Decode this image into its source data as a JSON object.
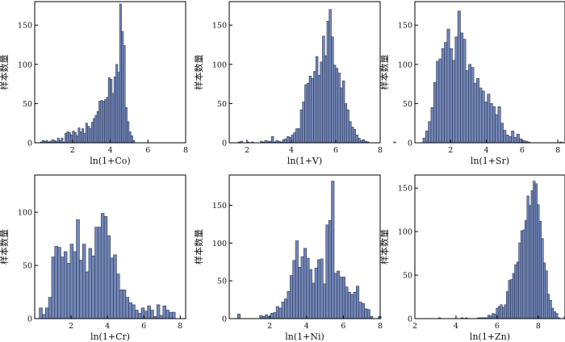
{
  "colors": {
    "bar_fill": "#7387b6",
    "bar_edge": "#2a3558",
    "axis": "#000000"
  },
  "chart_data": [
    {
      "type": "bar",
      "xlabel": "ln(1+Co)",
      "ylabel": "样本数量",
      "xlim": [
        0,
        8
      ],
      "ylim": [
        0,
        180
      ],
      "xticks": [
        2,
        4,
        6,
        8
      ],
      "yticks": [
        0,
        50,
        100,
        150
      ],
      "bin_width": 0.1,
      "x_start": 0.3,
      "values": [
        1,
        3,
        2,
        3,
        1,
        2,
        4,
        3,
        2,
        6,
        3,
        6,
        1,
        12,
        14,
        13,
        10,
        15,
        13,
        9,
        19,
        14,
        18,
        12,
        25,
        21,
        18,
        26,
        31,
        35,
        40,
        53,
        54,
        53,
        55,
        58,
        83,
        81,
        63,
        84,
        100,
        90,
        177,
        142,
        124,
        45,
        27,
        14,
        9,
        3
      ]
    },
    {
      "type": "bar",
      "xlabel": "ln(1+V)",
      "ylabel": "样本数量",
      "xlim": [
        1.2,
        8
      ],
      "ylim": [
        0,
        180
      ],
      "xticks": [
        2,
        4,
        6,
        8
      ],
      "yticks": [
        0,
        50,
        100,
        150
      ],
      "bin_width": 0.1,
      "x_start": 1.6,
      "values": [
        1,
        2,
        0,
        0,
        1,
        0,
        1,
        0,
        0,
        0,
        2,
        1,
        3,
        2,
        2,
        8,
        1,
        3,
        2,
        1,
        4,
        5,
        8,
        7,
        10,
        13,
        18,
        18,
        42,
        52,
        74,
        76,
        85,
        82,
        91,
        110,
        86,
        103,
        136,
        111,
        155,
        170,
        135,
        99,
        95,
        89,
        70,
        79,
        50,
        42,
        27,
        20,
        17,
        10,
        6,
        3,
        4,
        2,
        1,
        0,
        0,
        0,
        0,
        0,
        0,
        0,
        0,
        0,
        0,
        0,
        1,
        0
      ]
    },
    {
      "type": "bar",
      "xlabel": "ln(1+Sr)",
      "ylabel": "样本数量",
      "xlim": [
        0,
        8.4
      ],
      "ylim": [
        0,
        180
      ],
      "xticks": [
        2,
        4,
        6,
        8
      ],
      "yticks": [
        0,
        50,
        100,
        150
      ],
      "bin_width": 0.15,
      "x_start": 0.45,
      "values": [
        6,
        15,
        27,
        45,
        77,
        104,
        107,
        120,
        128,
        145,
        120,
        105,
        135,
        168,
        140,
        132,
        92,
        100,
        96,
        76,
        82,
        70,
        66,
        52,
        62,
        50,
        46,
        36,
        46,
        25,
        16,
        10,
        8,
        15,
        7,
        11,
        5,
        3,
        2,
        1,
        0,
        0,
        0,
        0,
        0,
        0,
        0,
        0,
        0,
        0,
        0,
        1
      ]
    },
    {
      "type": "bar",
      "xlabel": "ln(1+Cr)",
      "ylabel": "样本数量",
      "xlim": [
        0,
        8.3
      ],
      "ylim": [
        0,
        135
      ],
      "xticks": [
        2,
        4,
        6,
        8
      ],
      "yticks": [
        0,
        50,
        100
      ],
      "bin_width": 0.17,
      "x_start": 0.25,
      "values": [
        10,
        4,
        10,
        20,
        58,
        68,
        67,
        58,
        63,
        52,
        70,
        63,
        93,
        55,
        70,
        44,
        66,
        59,
        86,
        86,
        99,
        96,
        78,
        57,
        60,
        42,
        27,
        27,
        20,
        15,
        13,
        8,
        5,
        10,
        7,
        12,
        8,
        2,
        13,
        3,
        12,
        8,
        6,
        6
      ]
    },
    {
      "type": "bar",
      "xlabel": "ln(1+Ni)",
      "ylabel": "样本数量",
      "xlim": [
        -0.2,
        8
      ],
      "ylim": [
        0,
        190
      ],
      "xticks": [
        2,
        4,
        6,
        8
      ],
      "yticks": [
        0,
        50,
        100,
        150
      ],
      "bin_width": 0.15,
      "x_start": 0.25,
      "values": [
        6,
        0,
        0,
        0,
        0,
        0,
        0,
        0,
        4,
        3,
        5,
        3,
        7,
        8,
        16,
        14,
        22,
        26,
        36,
        57,
        77,
        103,
        68,
        82,
        93,
        80,
        65,
        47,
        67,
        78,
        79,
        46,
        124,
        130,
        182,
        60,
        63,
        55,
        55,
        42,
        35,
        32,
        35,
        43,
        22,
        20,
        13,
        12,
        3,
        0,
        0,
        3
      ]
    },
    {
      "type": "bar",
      "xlabel": "ln(1+Zn)",
      "ylabel": "样本数量",
      "xlim": [
        2,
        9.3
      ],
      "ylim": [
        0,
        165
      ],
      "xticks": [
        2,
        4,
        6,
        8
      ],
      "yticks": [
        0,
        50,
        100,
        150
      ],
      "bin_width": 0.1,
      "x_start": 3.15,
      "values": [
        1,
        0,
        0,
        0,
        0,
        0,
        0,
        0,
        0,
        0,
        0,
        1,
        0,
        1,
        0,
        0,
        0,
        0,
        0,
        1,
        1,
        1,
        1,
        1,
        4,
        3,
        6,
        5,
        12,
        14,
        16,
        13,
        16,
        31,
        44,
        45,
        52,
        62,
        65,
        87,
        101,
        102,
        113,
        141,
        130,
        147,
        158,
        155,
        131,
        112,
        92,
        64,
        55,
        28,
        21,
        12,
        8,
        6,
        1,
        0,
        0,
        2
      ]
    }
  ]
}
